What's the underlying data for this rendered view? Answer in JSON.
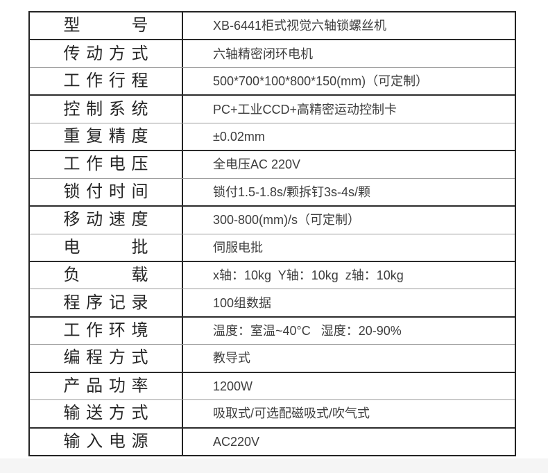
{
  "page": {
    "background_color": "#ffffff",
    "bottom_strip_color": "#f5f5f5"
  },
  "spec_table": {
    "outer_border_color": "#232323",
    "dark_line_color": "#2b2b2b",
    "light_line_color": "#9b9b9b",
    "rows": [
      {
        "label": "型号",
        "value": "XB-6441柜式视觉六轴锁螺丝机"
      },
      {
        "label": "传动方式",
        "value": "六轴精密闭环电机"
      },
      {
        "label": "工作行程",
        "value": "500*700*100*800*150(mm)（可定制）"
      },
      {
        "label": "控制系统",
        "value": "PC+工业CCD+高精密运动控制卡"
      },
      {
        "label": "重复精度",
        "value": "±0.02mm"
      },
      {
        "label": "工作电压",
        "value": "全电压AC 220V"
      },
      {
        "label": "锁付时间",
        "value": "锁付1.5-1.8s/颗拆钉3s-4s/颗"
      },
      {
        "label": "移动速度",
        "value": "300-800(mm)/s（可定制）"
      },
      {
        "label": "电批",
        "value": "伺服电批"
      },
      {
        "label": "负载",
        "value": "x轴：10kg  Y轴：10kg  z轴：10kg"
      },
      {
        "label": "程序记录",
        "value": "100组数据"
      },
      {
        "label": "工作环境",
        "value": "温度：室温~40°C   湿度：20-90%"
      },
      {
        "label": "编程方式",
        "value": "教导式"
      },
      {
        "label": "产品功率",
        "value": "1200W"
      },
      {
        "label": "输送方式",
        "value": "吸取式/可选配磁吸式/吹气式"
      },
      {
        "label": "输入电源",
        "value": "AC220V"
      }
    ]
  }
}
